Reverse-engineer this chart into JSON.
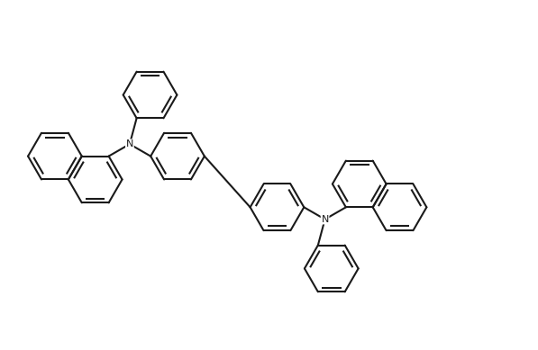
{
  "bg": "#ffffff",
  "lc": "#1a1a1a",
  "lw": 1.5,
  "figsize": [
    5.97,
    3.89
  ],
  "dpi": 100,
  "xlim": [
    0.0,
    10.0
  ],
  "ylim": [
    0.0,
    6.5
  ],
  "r": 0.5,
  "db_inner": 0.16,
  "db_trim": 0.14,
  "N_fs": 8.0
}
